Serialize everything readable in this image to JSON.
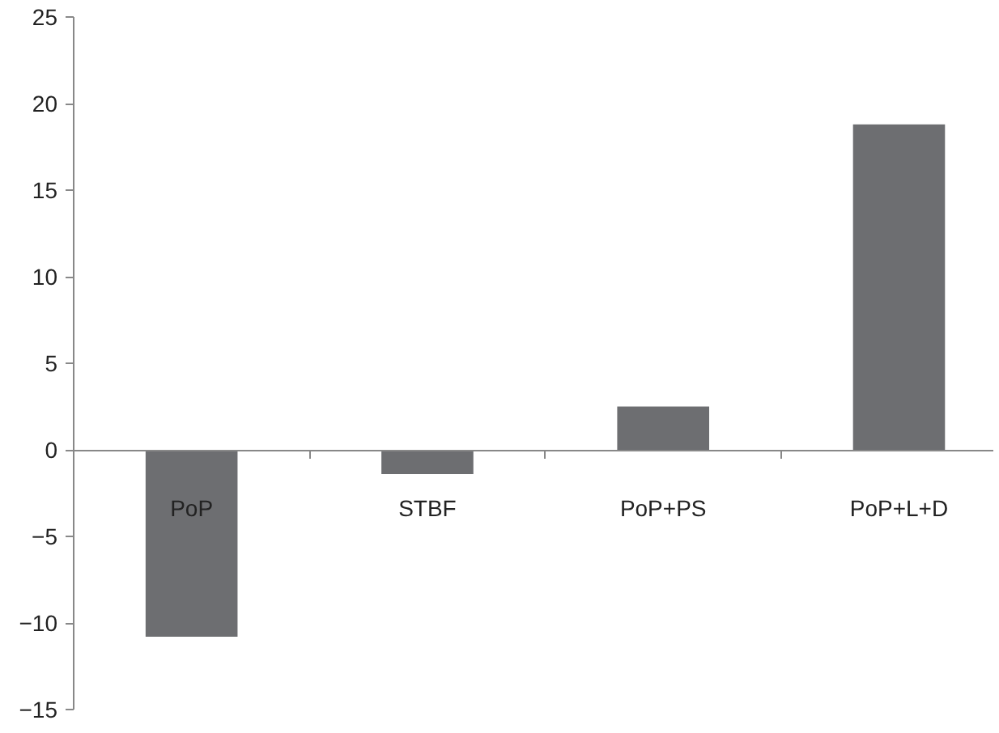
{
  "chart_data": {
    "type": "bar",
    "categories": [
      "PoP",
      "STBF",
      "PoP+PS",
      "PoP+L+D"
    ],
    "values": [
      -10.8,
      -1.4,
      2.5,
      18.8
    ],
    "color": "#6d6e71",
    "ylim": [
      -15,
      25
    ],
    "yticks": [
      -15,
      -10,
      -5,
      0,
      5,
      10,
      15,
      20,
      25
    ],
    "grid": false
  }
}
